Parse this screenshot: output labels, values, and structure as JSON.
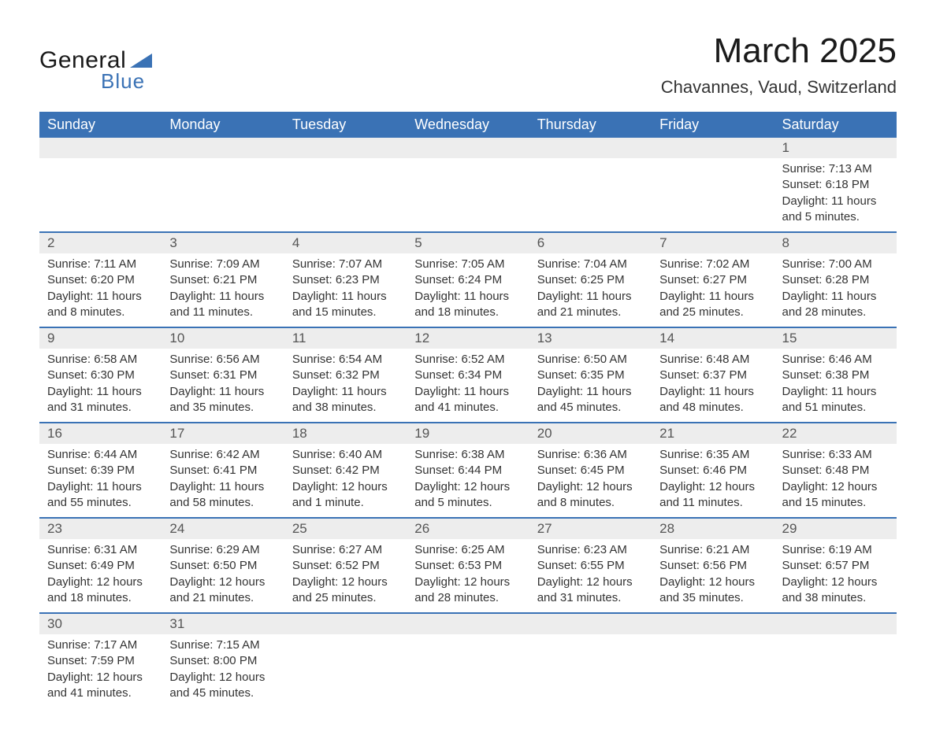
{
  "logo": {
    "part1": "General",
    "part2": "Blue",
    "tri_color": "#3a72b5"
  },
  "title": "March 2025",
  "location": "Chavannes, Vaud, Switzerland",
  "colors": {
    "header_bg": "#3a72b5",
    "header_text": "#ffffff",
    "daynum_bg": "#ededed",
    "row_border": "#3a72b5",
    "text": "#333333"
  },
  "day_headers": [
    "Sunday",
    "Monday",
    "Tuesday",
    "Wednesday",
    "Thursday",
    "Friday",
    "Saturday"
  ],
  "weeks": [
    [
      null,
      null,
      null,
      null,
      null,
      null,
      {
        "n": "1",
        "sr": "Sunrise: 7:13 AM",
        "ss": "Sunset: 6:18 PM",
        "dl": "Daylight: 11 hours and 5 minutes."
      }
    ],
    [
      {
        "n": "2",
        "sr": "Sunrise: 7:11 AM",
        "ss": "Sunset: 6:20 PM",
        "dl": "Daylight: 11 hours and 8 minutes."
      },
      {
        "n": "3",
        "sr": "Sunrise: 7:09 AM",
        "ss": "Sunset: 6:21 PM",
        "dl": "Daylight: 11 hours and 11 minutes."
      },
      {
        "n": "4",
        "sr": "Sunrise: 7:07 AM",
        "ss": "Sunset: 6:23 PM",
        "dl": "Daylight: 11 hours and 15 minutes."
      },
      {
        "n": "5",
        "sr": "Sunrise: 7:05 AM",
        "ss": "Sunset: 6:24 PM",
        "dl": "Daylight: 11 hours and 18 minutes."
      },
      {
        "n": "6",
        "sr": "Sunrise: 7:04 AM",
        "ss": "Sunset: 6:25 PM",
        "dl": "Daylight: 11 hours and 21 minutes."
      },
      {
        "n": "7",
        "sr": "Sunrise: 7:02 AM",
        "ss": "Sunset: 6:27 PM",
        "dl": "Daylight: 11 hours and 25 minutes."
      },
      {
        "n": "8",
        "sr": "Sunrise: 7:00 AM",
        "ss": "Sunset: 6:28 PM",
        "dl": "Daylight: 11 hours and 28 minutes."
      }
    ],
    [
      {
        "n": "9",
        "sr": "Sunrise: 6:58 AM",
        "ss": "Sunset: 6:30 PM",
        "dl": "Daylight: 11 hours and 31 minutes."
      },
      {
        "n": "10",
        "sr": "Sunrise: 6:56 AM",
        "ss": "Sunset: 6:31 PM",
        "dl": "Daylight: 11 hours and 35 minutes."
      },
      {
        "n": "11",
        "sr": "Sunrise: 6:54 AM",
        "ss": "Sunset: 6:32 PM",
        "dl": "Daylight: 11 hours and 38 minutes."
      },
      {
        "n": "12",
        "sr": "Sunrise: 6:52 AM",
        "ss": "Sunset: 6:34 PM",
        "dl": "Daylight: 11 hours and 41 minutes."
      },
      {
        "n": "13",
        "sr": "Sunrise: 6:50 AM",
        "ss": "Sunset: 6:35 PM",
        "dl": "Daylight: 11 hours and 45 minutes."
      },
      {
        "n": "14",
        "sr": "Sunrise: 6:48 AM",
        "ss": "Sunset: 6:37 PM",
        "dl": "Daylight: 11 hours and 48 minutes."
      },
      {
        "n": "15",
        "sr": "Sunrise: 6:46 AM",
        "ss": "Sunset: 6:38 PM",
        "dl": "Daylight: 11 hours and 51 minutes."
      }
    ],
    [
      {
        "n": "16",
        "sr": "Sunrise: 6:44 AM",
        "ss": "Sunset: 6:39 PM",
        "dl": "Daylight: 11 hours and 55 minutes."
      },
      {
        "n": "17",
        "sr": "Sunrise: 6:42 AM",
        "ss": "Sunset: 6:41 PM",
        "dl": "Daylight: 11 hours and 58 minutes."
      },
      {
        "n": "18",
        "sr": "Sunrise: 6:40 AM",
        "ss": "Sunset: 6:42 PM",
        "dl": "Daylight: 12 hours and 1 minute."
      },
      {
        "n": "19",
        "sr": "Sunrise: 6:38 AM",
        "ss": "Sunset: 6:44 PM",
        "dl": "Daylight: 12 hours and 5 minutes."
      },
      {
        "n": "20",
        "sr": "Sunrise: 6:36 AM",
        "ss": "Sunset: 6:45 PM",
        "dl": "Daylight: 12 hours and 8 minutes."
      },
      {
        "n": "21",
        "sr": "Sunrise: 6:35 AM",
        "ss": "Sunset: 6:46 PM",
        "dl": "Daylight: 12 hours and 11 minutes."
      },
      {
        "n": "22",
        "sr": "Sunrise: 6:33 AM",
        "ss": "Sunset: 6:48 PM",
        "dl": "Daylight: 12 hours and 15 minutes."
      }
    ],
    [
      {
        "n": "23",
        "sr": "Sunrise: 6:31 AM",
        "ss": "Sunset: 6:49 PM",
        "dl": "Daylight: 12 hours and 18 minutes."
      },
      {
        "n": "24",
        "sr": "Sunrise: 6:29 AM",
        "ss": "Sunset: 6:50 PM",
        "dl": "Daylight: 12 hours and 21 minutes."
      },
      {
        "n": "25",
        "sr": "Sunrise: 6:27 AM",
        "ss": "Sunset: 6:52 PM",
        "dl": "Daylight: 12 hours and 25 minutes."
      },
      {
        "n": "26",
        "sr": "Sunrise: 6:25 AM",
        "ss": "Sunset: 6:53 PM",
        "dl": "Daylight: 12 hours and 28 minutes."
      },
      {
        "n": "27",
        "sr": "Sunrise: 6:23 AM",
        "ss": "Sunset: 6:55 PM",
        "dl": "Daylight: 12 hours and 31 minutes."
      },
      {
        "n": "28",
        "sr": "Sunrise: 6:21 AM",
        "ss": "Sunset: 6:56 PM",
        "dl": "Daylight: 12 hours and 35 minutes."
      },
      {
        "n": "29",
        "sr": "Sunrise: 6:19 AM",
        "ss": "Sunset: 6:57 PM",
        "dl": "Daylight: 12 hours and 38 minutes."
      }
    ],
    [
      {
        "n": "30",
        "sr": "Sunrise: 7:17 AM",
        "ss": "Sunset: 7:59 PM",
        "dl": "Daylight: 12 hours and 41 minutes."
      },
      {
        "n": "31",
        "sr": "Sunrise: 7:15 AM",
        "ss": "Sunset: 8:00 PM",
        "dl": "Daylight: 12 hours and 45 minutes."
      },
      null,
      null,
      null,
      null,
      null
    ]
  ]
}
